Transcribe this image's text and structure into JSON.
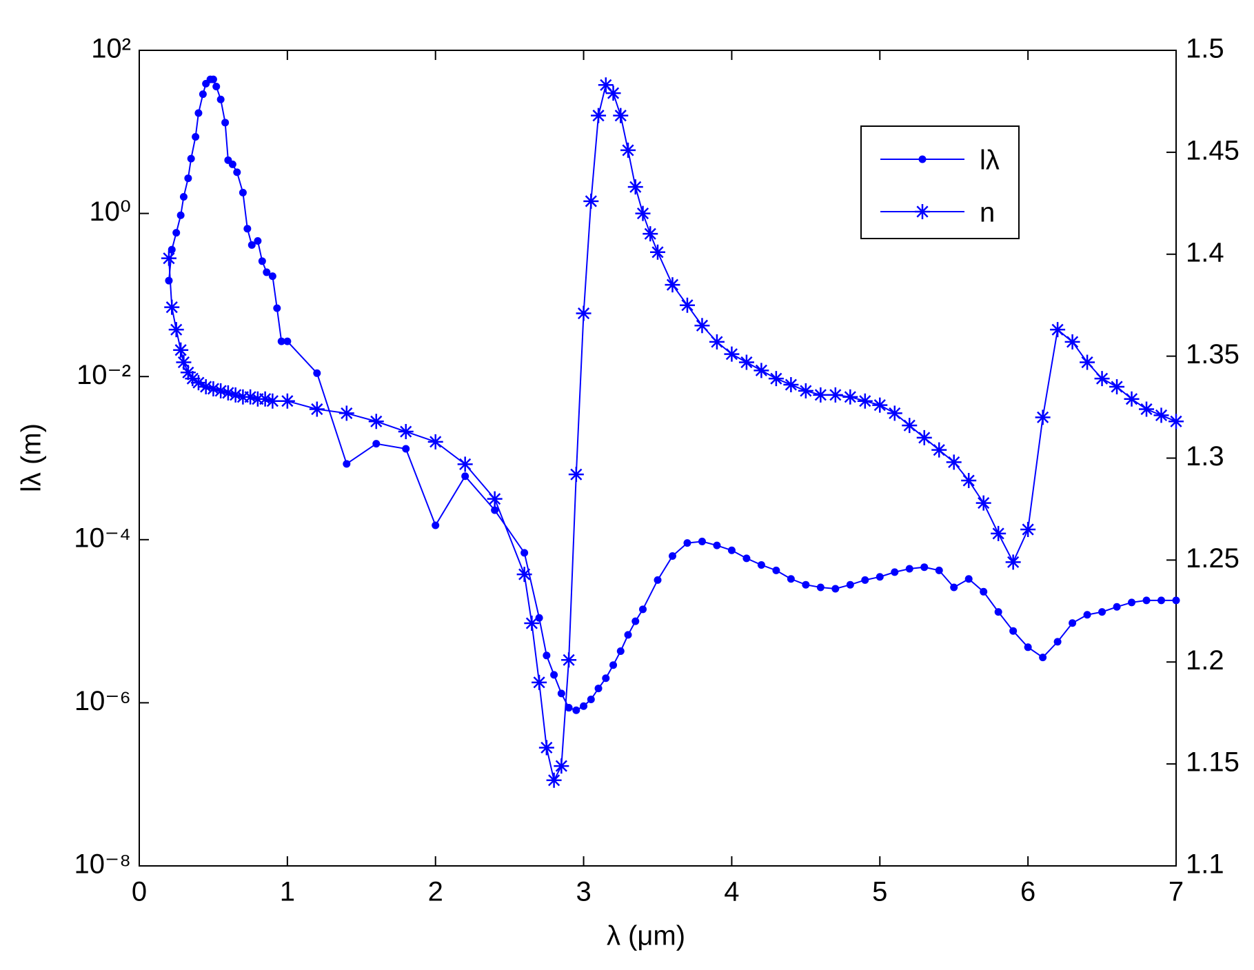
{
  "chart_data": {
    "type": "line",
    "x_label": "λ  (μm)",
    "y_label": "lλ (m)",
    "xlim": [
      0,
      7
    ],
    "xticks": [
      0,
      1,
      2,
      3,
      4,
      5,
      6,
      7
    ],
    "ylim": [
      1e-08,
      100
    ],
    "ylog": true,
    "yticks": [
      {
        "value": 1e-08,
        "label": "10⁻⁸"
      },
      {
        "value": 1e-06,
        "label": "10⁻⁶"
      },
      {
        "value": 0.0001,
        "label": "10⁻⁴"
      },
      {
        "value": 0.01,
        "label": "10⁻²"
      },
      {
        "value": 1,
        "label": "10⁰"
      },
      {
        "value": 100,
        "label": "10²"
      }
    ],
    "y2lim": [
      1.1,
      1.5
    ],
    "y2ticks": [
      1.1,
      1.15,
      1.2,
      1.25,
      1.3,
      1.35,
      1.4,
      1.45,
      1.5
    ],
    "legend": "upper right",
    "series": [
      {
        "name": "lλ",
        "color": "#0000ff",
        "marker": "dot",
        "x": [
          0.2,
          0.22,
          0.25,
          0.28,
          0.3,
          0.33,
          0.35,
          0.38,
          0.4,
          0.43,
          0.45,
          0.48,
          0.5,
          0.52,
          0.55,
          0.58,
          0.6,
          0.63,
          0.66,
          0.7,
          0.73,
          0.76,
          0.8,
          0.83,
          0.86,
          0.9,
          0.93,
          0.96,
          1.0,
          1.2,
          1.4,
          1.6,
          1.8,
          2.0,
          2.2,
          2.4,
          2.6,
          2.7,
          2.75,
          2.8,
          2.85,
          2.9,
          2.95,
          3.0,
          3.05,
          3.1,
          3.15,
          3.2,
          3.25,
          3.3,
          3.35,
          3.4,
          3.5,
          3.6,
          3.7,
          3.8,
          3.9,
          4.0,
          4.1,
          4.2,
          4.3,
          4.4,
          4.5,
          4.6,
          4.7,
          4.8,
          4.9,
          5.0,
          5.1,
          5.2,
          5.3,
          5.4,
          5.5,
          5.6,
          5.7,
          5.8,
          5.9,
          6.0,
          6.1,
          6.2,
          6.3,
          6.4,
          6.5,
          6.6,
          6.7,
          6.8,
          6.9,
          7.0
        ],
        "values": [
          0.15,
          0.36,
          0.58,
          0.95,
          1.6,
          2.7,
          4.7,
          8.7,
          17,
          29,
          39,
          44,
          44,
          36,
          25,
          13,
          4.5,
          4,
          3.2,
          1.8,
          0.65,
          0.41,
          0.46,
          0.26,
          0.19,
          0.17,
          0.069,
          0.027,
          0.027,
          0.011,
          0.00085,
          0.0015,
          0.0013,
          0.00015,
          0.0006,
          0.00023,
          6.9e-05,
          1.1e-05,
          3.8e-06,
          2.2e-06,
          1.3e-06,
          8.7e-07,
          8.1e-07,
          9.1e-07,
          1.1e-06,
          1.5e-06,
          2e-06,
          2.9e-06,
          4.3e-06,
          6.8e-06,
          1e-05,
          1.4e-05,
          3.2e-05,
          6.3e-05,
          9.1e-05,
          9.5e-05,
          8.5e-05,
          7.4e-05,
          5.9e-05,
          4.9e-05,
          4.2e-05,
          3.3e-05,
          2.8e-05,
          2.6e-05,
          2.5e-05,
          2.8e-05,
          3.2e-05,
          3.5e-05,
          4e-05,
          4.4e-05,
          4.6e-05,
          4.2e-05,
          2.6e-05,
          3.3e-05,
          2.3e-05,
          1.3e-05,
          7.6e-06,
          4.8e-06,
          3.6e-06,
          5.6e-06,
          9.5e-06,
          1.2e-05,
          1.3e-05,
          1.5e-05,
          1.7e-05,
          1.8e-05,
          1.8e-05,
          1.8e-05
        ]
      },
      {
        "name": "n",
        "color": "#0000ff",
        "marker": "star",
        "axis": "y2",
        "x": [
          0.2,
          0.22,
          0.25,
          0.28,
          0.3,
          0.33,
          0.36,
          0.4,
          0.45,
          0.5,
          0.55,
          0.6,
          0.65,
          0.7,
          0.75,
          0.8,
          0.85,
          0.9,
          1.0,
          1.2,
          1.4,
          1.6,
          1.8,
          2.0,
          2.2,
          2.4,
          2.6,
          2.65,
          2.7,
          2.75,
          2.8,
          2.85,
          2.9,
          2.95,
          3.0,
          3.05,
          3.1,
          3.15,
          3.2,
          3.25,
          3.3,
          3.35,
          3.4,
          3.45,
          3.5,
          3.6,
          3.7,
          3.8,
          3.9,
          4.0,
          4.1,
          4.2,
          4.3,
          4.4,
          4.5,
          4.6,
          4.7,
          4.8,
          4.9,
          5.0,
          5.1,
          5.2,
          5.3,
          5.4,
          5.5,
          5.6,
          5.7,
          5.8,
          5.9,
          6.0,
          6.1,
          6.2,
          6.3,
          6.4,
          6.5,
          6.6,
          6.7,
          6.8,
          6.9,
          7.0
        ],
        "values": [
          1.398,
          1.374,
          1.363,
          1.353,
          1.347,
          1.342,
          1.339,
          1.337,
          1.335,
          1.334,
          1.333,
          1.332,
          1.331,
          1.33,
          1.33,
          1.329,
          1.329,
          1.328,
          1.328,
          1.324,
          1.322,
          1.318,
          1.313,
          1.308,
          1.297,
          1.28,
          1.243,
          1.219,
          1.19,
          1.158,
          1.142,
          1.149,
          1.201,
          1.292,
          1.371,
          1.426,
          1.468,
          1.483,
          1.479,
          1.468,
          1.451,
          1.433,
          1.42,
          1.41,
          1.401,
          1.385,
          1.375,
          1.365,
          1.357,
          1.351,
          1.347,
          1.343,
          1.339,
          1.336,
          1.333,
          1.331,
          1.331,
          1.33,
          1.328,
          1.326,
          1.322,
          1.316,
          1.31,
          1.304,
          1.298,
          1.289,
          1.278,
          1.263,
          1.249,
          1.265,
          1.32,
          1.363,
          1.357,
          1.347,
          1.339,
          1.335,
          1.329,
          1.324,
          1.321,
          1.318
        ]
      }
    ]
  }
}
